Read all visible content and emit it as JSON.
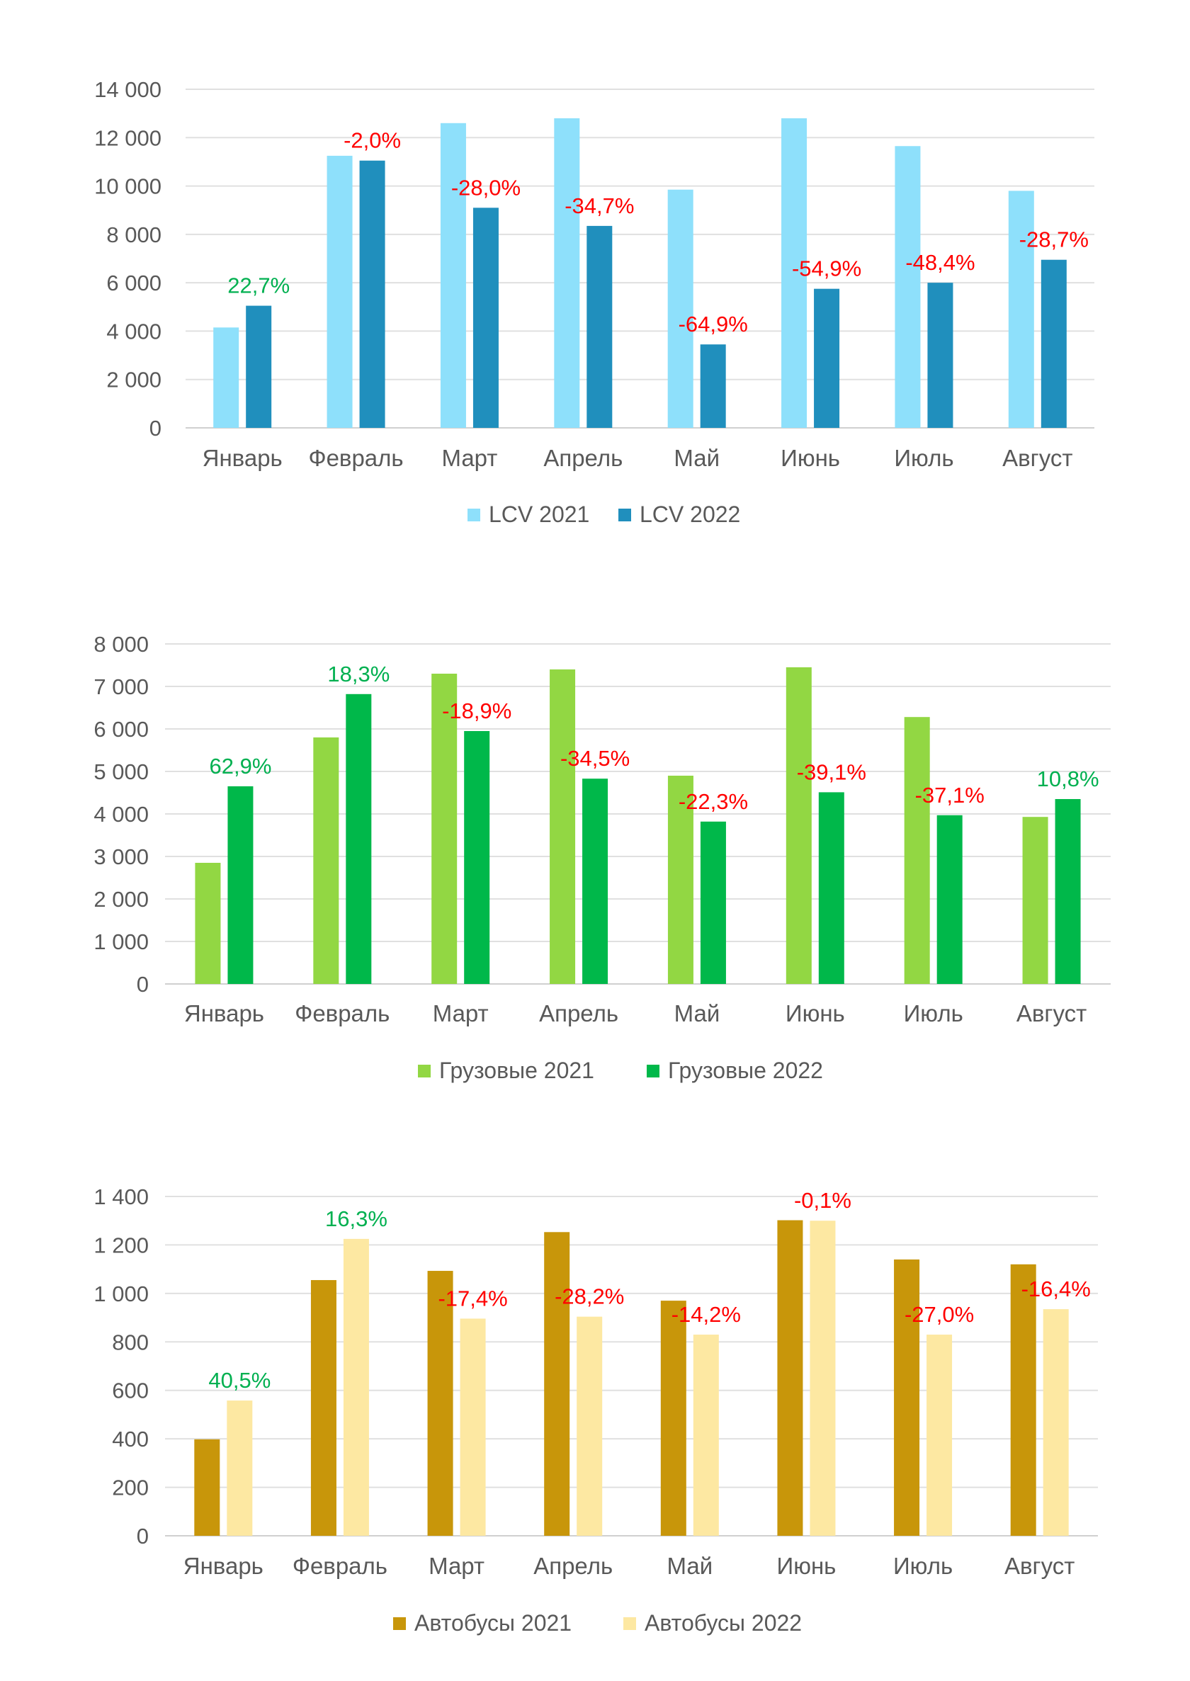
{
  "chart_data": [
    {
      "type": "bar",
      "categories": [
        "Январь",
        "Февраль",
        "Март",
        "Апрель",
        "Май",
        "Июнь",
        "Июль",
        "Август"
      ],
      "series": [
        {
          "name": "LCV 2021",
          "color": "#8ee0fb",
          "values": [
            4150,
            11250,
            12600,
            12800,
            9850,
            12800,
            11650,
            9800
          ]
        },
        {
          "name": "LCV 2022",
          "color": "#208fbd",
          "values": [
            5050,
            11050,
            9100,
            8350,
            3450,
            5750,
            6000,
            6950
          ]
        }
      ],
      "data_labels": [
        {
          "text": "22,7%",
          "color": "#00b050"
        },
        {
          "text": "-2,0%",
          "color": "#ff0000"
        },
        {
          "text": "-28,0%",
          "color": "#ff0000"
        },
        {
          "text": "-34,7%",
          "color": "#ff0000"
        },
        {
          "text": "-64,9%",
          "color": "#ff0000"
        },
        {
          "text": "-54,9%",
          "color": "#ff0000"
        },
        {
          "text": "-48,4%",
          "color": "#ff0000"
        },
        {
          "text": "-28,7%",
          "color": "#ff0000"
        }
      ],
      "ylim": [
        0,
        14000
      ],
      "yticks": [
        0,
        2000,
        4000,
        6000,
        8000,
        10000,
        12000,
        14000
      ],
      "ytick_labels": [
        "0",
        "2 000",
        "4 000",
        "6 000",
        "8 000",
        "10 000",
        "12 000",
        "14 000"
      ],
      "grid": true,
      "legend": "bottom"
    },
    {
      "type": "bar",
      "categories": [
        "Январь",
        "Февраль",
        "Март",
        "Апрель",
        "Май",
        "Июнь",
        "Июль",
        "Август"
      ],
      "series": [
        {
          "name": "Грузовые 2021",
          "color": "#92d743",
          "values": [
            2850,
            5800,
            7300,
            7400,
            4900,
            7450,
            6280,
            3930
          ]
        },
        {
          "name": "Грузовые 2022",
          "color": "#00b84a",
          "values": [
            4650,
            6820,
            5950,
            4830,
            3820,
            4510,
            3970,
            4350
          ]
        }
      ],
      "data_labels": [
        {
          "text": "62,9%",
          "color": "#00b050"
        },
        {
          "text": "18,3%",
          "color": "#00b050"
        },
        {
          "text": "-18,9%",
          "color": "#ff0000"
        },
        {
          "text": "-34,5%",
          "color": "#ff0000"
        },
        {
          "text": "-22,3%",
          "color": "#ff0000"
        },
        {
          "text": "-39,1%",
          "color": "#ff0000"
        },
        {
          "text": "-37,1%",
          "color": "#ff0000"
        },
        {
          "text": "10,8%",
          "color": "#00b050"
        }
      ],
      "ylim": [
        0,
        8000
      ],
      "yticks": [
        0,
        1000,
        2000,
        3000,
        4000,
        5000,
        6000,
        7000,
        8000
      ],
      "ytick_labels": [
        "0",
        "1 000",
        "2 000",
        "3 000",
        "4 000",
        "5 000",
        "6 000",
        "7 000",
        "8 000"
      ],
      "grid": true,
      "legend": "bottom"
    },
    {
      "type": "bar",
      "categories": [
        "Январь",
        "Февраль",
        "Март",
        "Апрель",
        "Май",
        "Июнь",
        "Июль",
        "Август"
      ],
      "series": [
        {
          "name": "Автобусы 2021",
          "color": "#c8960a",
          "values": [
            398,
            1055,
            1093,
            1253,
            970,
            1302,
            1140,
            1120
          ]
        },
        {
          "name": "Автобусы 2022",
          "color": "#fde8a2",
          "values": [
            558,
            1225,
            896,
            904,
            830,
            1300,
            830,
            935
          ]
        }
      ],
      "data_labels": [
        {
          "text": "40,5%",
          "color": "#00b050"
        },
        {
          "text": "16,3%",
          "color": "#00b050"
        },
        {
          "text": "-17,4%",
          "color": "#ff0000"
        },
        {
          "text": "-28,2%",
          "color": "#ff0000"
        },
        {
          "text": "-14,2%",
          "color": "#ff0000"
        },
        {
          "text": "-0,1%",
          "color": "#ff0000"
        },
        {
          "text": "-27,0%",
          "color": "#ff0000"
        },
        {
          "text": "-16,4%",
          "color": "#ff0000"
        }
      ],
      "ylim": [
        0,
        1400
      ],
      "yticks": [
        0,
        200,
        400,
        600,
        800,
        1000,
        1200,
        1400
      ],
      "ytick_labels": [
        "0",
        "200",
        "400",
        "600",
        "800",
        "1 000",
        "1 200",
        "1 400"
      ],
      "grid": true,
      "legend": "bottom"
    }
  ]
}
